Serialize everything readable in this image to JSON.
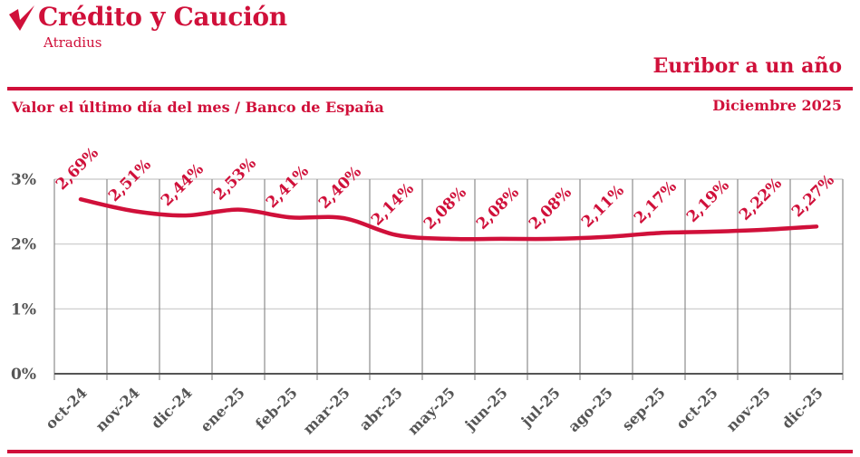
{
  "brand": {
    "name": "Crédito y Caución",
    "sub": "Atradius",
    "logo_icon": "checkmark-logo-icon",
    "color": "#d0103a"
  },
  "title": "Euribor a un año",
  "subtitle": "Valor el último día del mes / Banco de España",
  "date_label": "Diciembre 2025",
  "chart_data": {
    "type": "line",
    "title": "Euribor a un año",
    "categories": [
      "oct-24",
      "nov-24",
      "dic-24",
      "ene-25",
      "feb-25",
      "mar-25",
      "abr-25",
      "may-25",
      "jun-25",
      "jul-25",
      "ago-25",
      "sep-25",
      "oct-25",
      "nov-25",
      "dic-25"
    ],
    "values": [
      2.69,
      2.51,
      2.44,
      2.53,
      2.41,
      2.4,
      2.14,
      2.08,
      2.08,
      2.08,
      2.11,
      2.17,
      2.19,
      2.22,
      2.27
    ],
    "data_labels": [
      "2,69%",
      "2,51%",
      "2,44%",
      "2,53%",
      "2,41%",
      "2,40%",
      "2,14%",
      "2,08%",
      "2,08%",
      "2,08%",
      "2,11%",
      "2,17%",
      "2,19%",
      "2,22%",
      "2,27%"
    ],
    "yticks": [
      0,
      1,
      2,
      3
    ],
    "ytick_labels": [
      "0%",
      "1%",
      "2%",
      "3%"
    ],
    "ylim": [
      0,
      3
    ],
    "grid": true,
    "line_color": "#d0103a",
    "axis_color": "#555555"
  }
}
